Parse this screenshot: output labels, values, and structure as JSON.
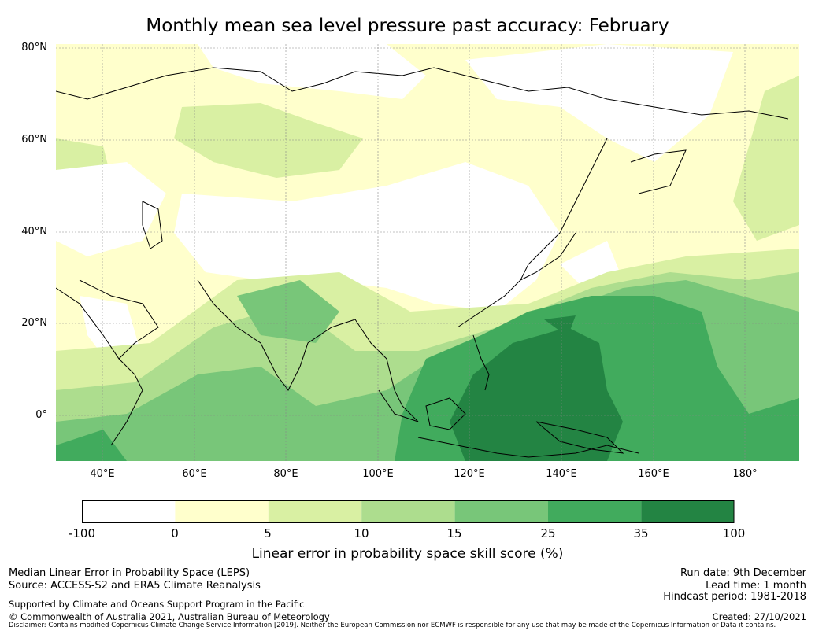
{
  "title": "Monthly mean sea level pressure past accuracy: February",
  "map": {
    "lat_labels": [
      "80°N",
      "60°N",
      "40°N",
      "20°N",
      "0°"
    ],
    "lon_labels": [
      "40°E",
      "60°E",
      "80°E",
      "100°E",
      "120°E",
      "140°E",
      "160°E",
      "180°"
    ],
    "colors": {
      "band_lt0": "#ffffff",
      "band_0_5": "#ffffcc",
      "band_5_10": "#d9f0a3",
      "band_10_15": "#addd8e",
      "band_15_25": "#78c679",
      "band_25_35": "#41ab5d",
      "band_35_100": "#238443",
      "coast": "#000000",
      "grid": "#888888"
    }
  },
  "colorbar": {
    "ticks": [
      "-100",
      "0",
      "5",
      "10",
      "15",
      "25",
      "35",
      "100"
    ],
    "label": "Linear error in probability space skill score (%)"
  },
  "footer": {
    "left_line1": "Median Linear Error in Probability Space (LEPS)",
    "left_line2": "Source: ACCESS-S2 and ERA5 Climate Reanalysis",
    "left_line3": "Supported by Climate and Oceans Support Program in the Pacific",
    "left_line4": "© Commonwealth of Australia 2021, Australian Bureau of Meteorology",
    "right_line1": "Run date: 9th December",
    "right_line2": "Lead time: 1 month",
    "right_line3": "Hindcast period: 1981-2018",
    "right_line4": "Created: 27/10/2021",
    "disclaimer": "Disclaimer: Contains modified Copernicus Climate Change Service Information [2019]. Neither the European Commission nor ECMWF is responsible for any use that may be made of the Copernicus Information or Data it contains."
  }
}
